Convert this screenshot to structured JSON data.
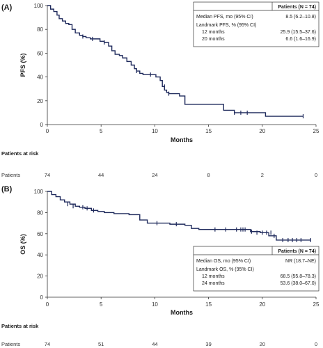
{
  "chart_data": [
    {
      "panel": "(A)",
      "type": "line",
      "step": true,
      "color": "#1f2a5c",
      "ylabel": "PFS (%)",
      "xlabel": "Months",
      "xlim": [
        0,
        25
      ],
      "ylim": [
        0,
        100
      ],
      "xticks": [
        0,
        5,
        10,
        15,
        20,
        25
      ],
      "yticks": [
        0,
        20,
        40,
        60,
        80,
        100
      ],
      "grid": false,
      "x": [
        0,
        0.3,
        0.6,
        0.9,
        1.1,
        1.4,
        1.7,
        2.0,
        2.3,
        2.6,
        3.0,
        3.3,
        3.6,
        4.0,
        4.5,
        4.9,
        5.3,
        5.7,
        6.0,
        6.3,
        6.7,
        7.0,
        7.4,
        7.8,
        8.1,
        8.3,
        8.6,
        8.9,
        9.4,
        10.1,
        10.5,
        10.7,
        10.9,
        11.1,
        11.3,
        11.6,
        12.3,
        12.8,
        14.2,
        16.4,
        17.4,
        18.6,
        20.3,
        23.8
      ],
      "y": [
        100,
        97,
        95,
        92,
        89,
        87,
        85,
        84,
        80,
        77,
        75,
        74,
        73,
        72,
        72,
        70,
        69,
        66,
        62,
        59,
        58,
        56,
        53,
        50,
        47,
        45,
        43,
        42,
        42,
        40,
        37,
        32,
        29,
        27,
        26,
        26,
        24,
        17,
        17,
        12,
        10,
        10,
        7,
        7
      ],
      "censor_x": [
        3.3,
        4.2,
        5.3,
        8.3,
        9.6,
        10.9,
        11.3,
        17.4,
        18.0,
        18.6,
        23.8
      ],
      "censor_y": [
        74,
        72,
        69,
        45,
        42,
        32,
        26,
        10,
        10,
        10,
        7
      ],
      "table": {
        "header": "Patients (N = 74)",
        "rows": [
          {
            "label": "Median PFS, mo (95% CI)",
            "value": "8.5 (6.2–10.8)",
            "indent": false
          },
          {
            "label": "Landmark PFS, % (95% CI)",
            "value": "",
            "indent": false
          },
          {
            "label": "12 months",
            "value": "25.9 (15.5–37.6)",
            "indent": true
          },
          {
            "label": "20 months",
            "value": "6.6 (1.6–16.9)",
            "indent": true
          }
        ]
      },
      "risk": {
        "title": "Patients at risk",
        "row_label": "Patients",
        "times": [
          0,
          5,
          10,
          15,
          20,
          25
        ],
        "counts": [
          "74",
          "44",
          "24",
          "8",
          "2",
          "0"
        ]
      }
    },
    {
      "panel": "(B)",
      "type": "line",
      "step": true,
      "color": "#1f2a5c",
      "ylabel": "OS (%)",
      "xlabel": "Months",
      "xlim": [
        0,
        25
      ],
      "ylim": [
        0,
        100
      ],
      "xticks": [
        0,
        5,
        10,
        15,
        20,
        25
      ],
      "yticks": [
        0,
        20,
        40,
        60,
        80,
        100
      ],
      "grid": false,
      "x": [
        0,
        0.4,
        0.8,
        1.2,
        1.6,
        2.1,
        2.6,
        3.0,
        3.5,
        4.1,
        4.7,
        5.3,
        6.2,
        7.6,
        8.6,
        9.3,
        10.1,
        11.4,
        12.8,
        13.4,
        14.1,
        18.9,
        19.8,
        20.6,
        21.3,
        21.7,
        22.2,
        24.5
      ],
      "y": [
        100,
        97,
        95,
        92,
        90,
        88,
        86,
        85,
        84,
        82,
        81,
        80,
        79,
        78,
        73,
        70,
        70,
        69,
        68,
        65,
        64,
        62,
        61,
        58,
        54,
        54,
        54,
        54
      ],
      "censor_x": [
        1.9,
        2.4,
        3.3,
        3.7,
        4.3,
        10.2,
        12.0,
        15.6,
        16.6,
        17.6,
        18.0,
        18.2,
        18.4,
        19.0,
        19.5,
        20.0,
        20.4,
        20.8,
        21.1,
        21.9,
        22.4,
        22.8,
        23.2,
        23.6,
        24.5
      ],
      "censor_y": [
        88,
        86,
        85,
        84,
        82,
        70,
        69,
        64,
        64,
        64,
        64,
        64,
        64,
        62,
        61,
        61,
        61,
        61,
        58,
        54,
        54,
        54,
        54,
        54,
        54
      ],
      "table": {
        "header": "Patients (N = 74)",
        "rows": [
          {
            "label": "Median OS, mo (95% CI)",
            "value": "NR (18.7–NE)",
            "indent": false
          },
          {
            "label": "Landmark OS, % (95% CI)",
            "value": "",
            "indent": false
          },
          {
            "label": "12 months",
            "value": "68.5 (55.8–78.3)",
            "indent": true
          },
          {
            "label": "24 months",
            "value": "53.6 (38.0–67.0)",
            "indent": true
          }
        ]
      },
      "risk": {
        "title": "Patients at risk",
        "row_label": "Patients",
        "times": [
          0,
          5,
          10,
          15,
          20,
          25
        ],
        "counts": [
          "74",
          "51",
          "44",
          "39",
          "20",
          "0"
        ]
      }
    }
  ]
}
